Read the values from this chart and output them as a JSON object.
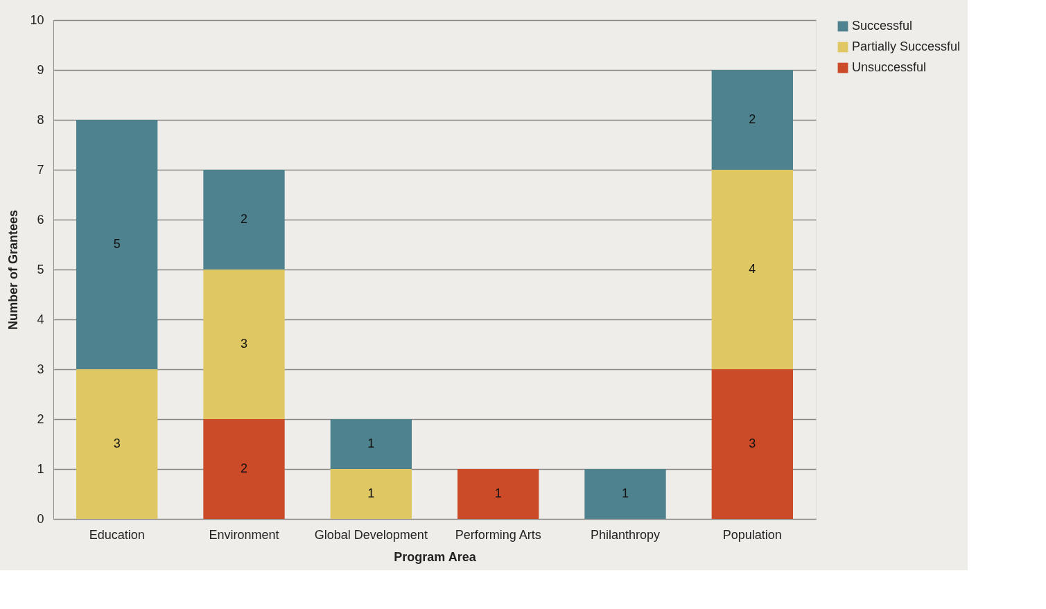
{
  "chart_data": {
    "type": "bar",
    "stacked": true,
    "xlabel": "Program Area",
    "ylabel": "Number of Grantees",
    "categories": [
      "Education",
      "Environment",
      "Global Development",
      "Performing Arts",
      "Philanthropy",
      "Population"
    ],
    "series": [
      {
        "name": "Unsuccessful",
        "color": "#cb4a27",
        "values": [
          null,
          2,
          null,
          1,
          null,
          3
        ]
      },
      {
        "name": "Partially Successful",
        "color": "#dfc763",
        "values": [
          3,
          3,
          1,
          null,
          null,
          4
        ]
      },
      {
        "name": "Successful",
        "color": "#4e828e",
        "values": [
          5,
          2,
          1,
          null,
          1,
          2
        ]
      }
    ],
    "ylim": [
      0,
      10
    ],
    "yticks": [
      0,
      1,
      2,
      3,
      4,
      5,
      6,
      7,
      8,
      9,
      10
    ],
    "grid": "y",
    "legend": "right",
    "data_labels": true
  }
}
